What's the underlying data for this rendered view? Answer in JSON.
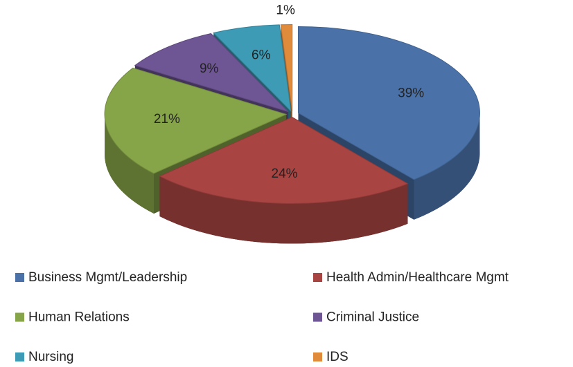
{
  "chart_data": {
    "type": "pie",
    "categories": [
      "Business Mgmt/Leadership",
      "Health Admin/Healthcare Mgmt",
      "Human Relations",
      "Criminal Justice",
      "Nursing",
      "IDS"
    ],
    "values": [
      39,
      24,
      21,
      9,
      6,
      1
    ],
    "value_labels": [
      "39%",
      "24%",
      "21%",
      "9%",
      "6%",
      "1%"
    ],
    "colors": [
      "#4a72a8",
      "#a84442",
      "#86a448",
      "#6e5594",
      "#3e9bb5",
      "#e08a3c"
    ],
    "legend": "bottom"
  }
}
